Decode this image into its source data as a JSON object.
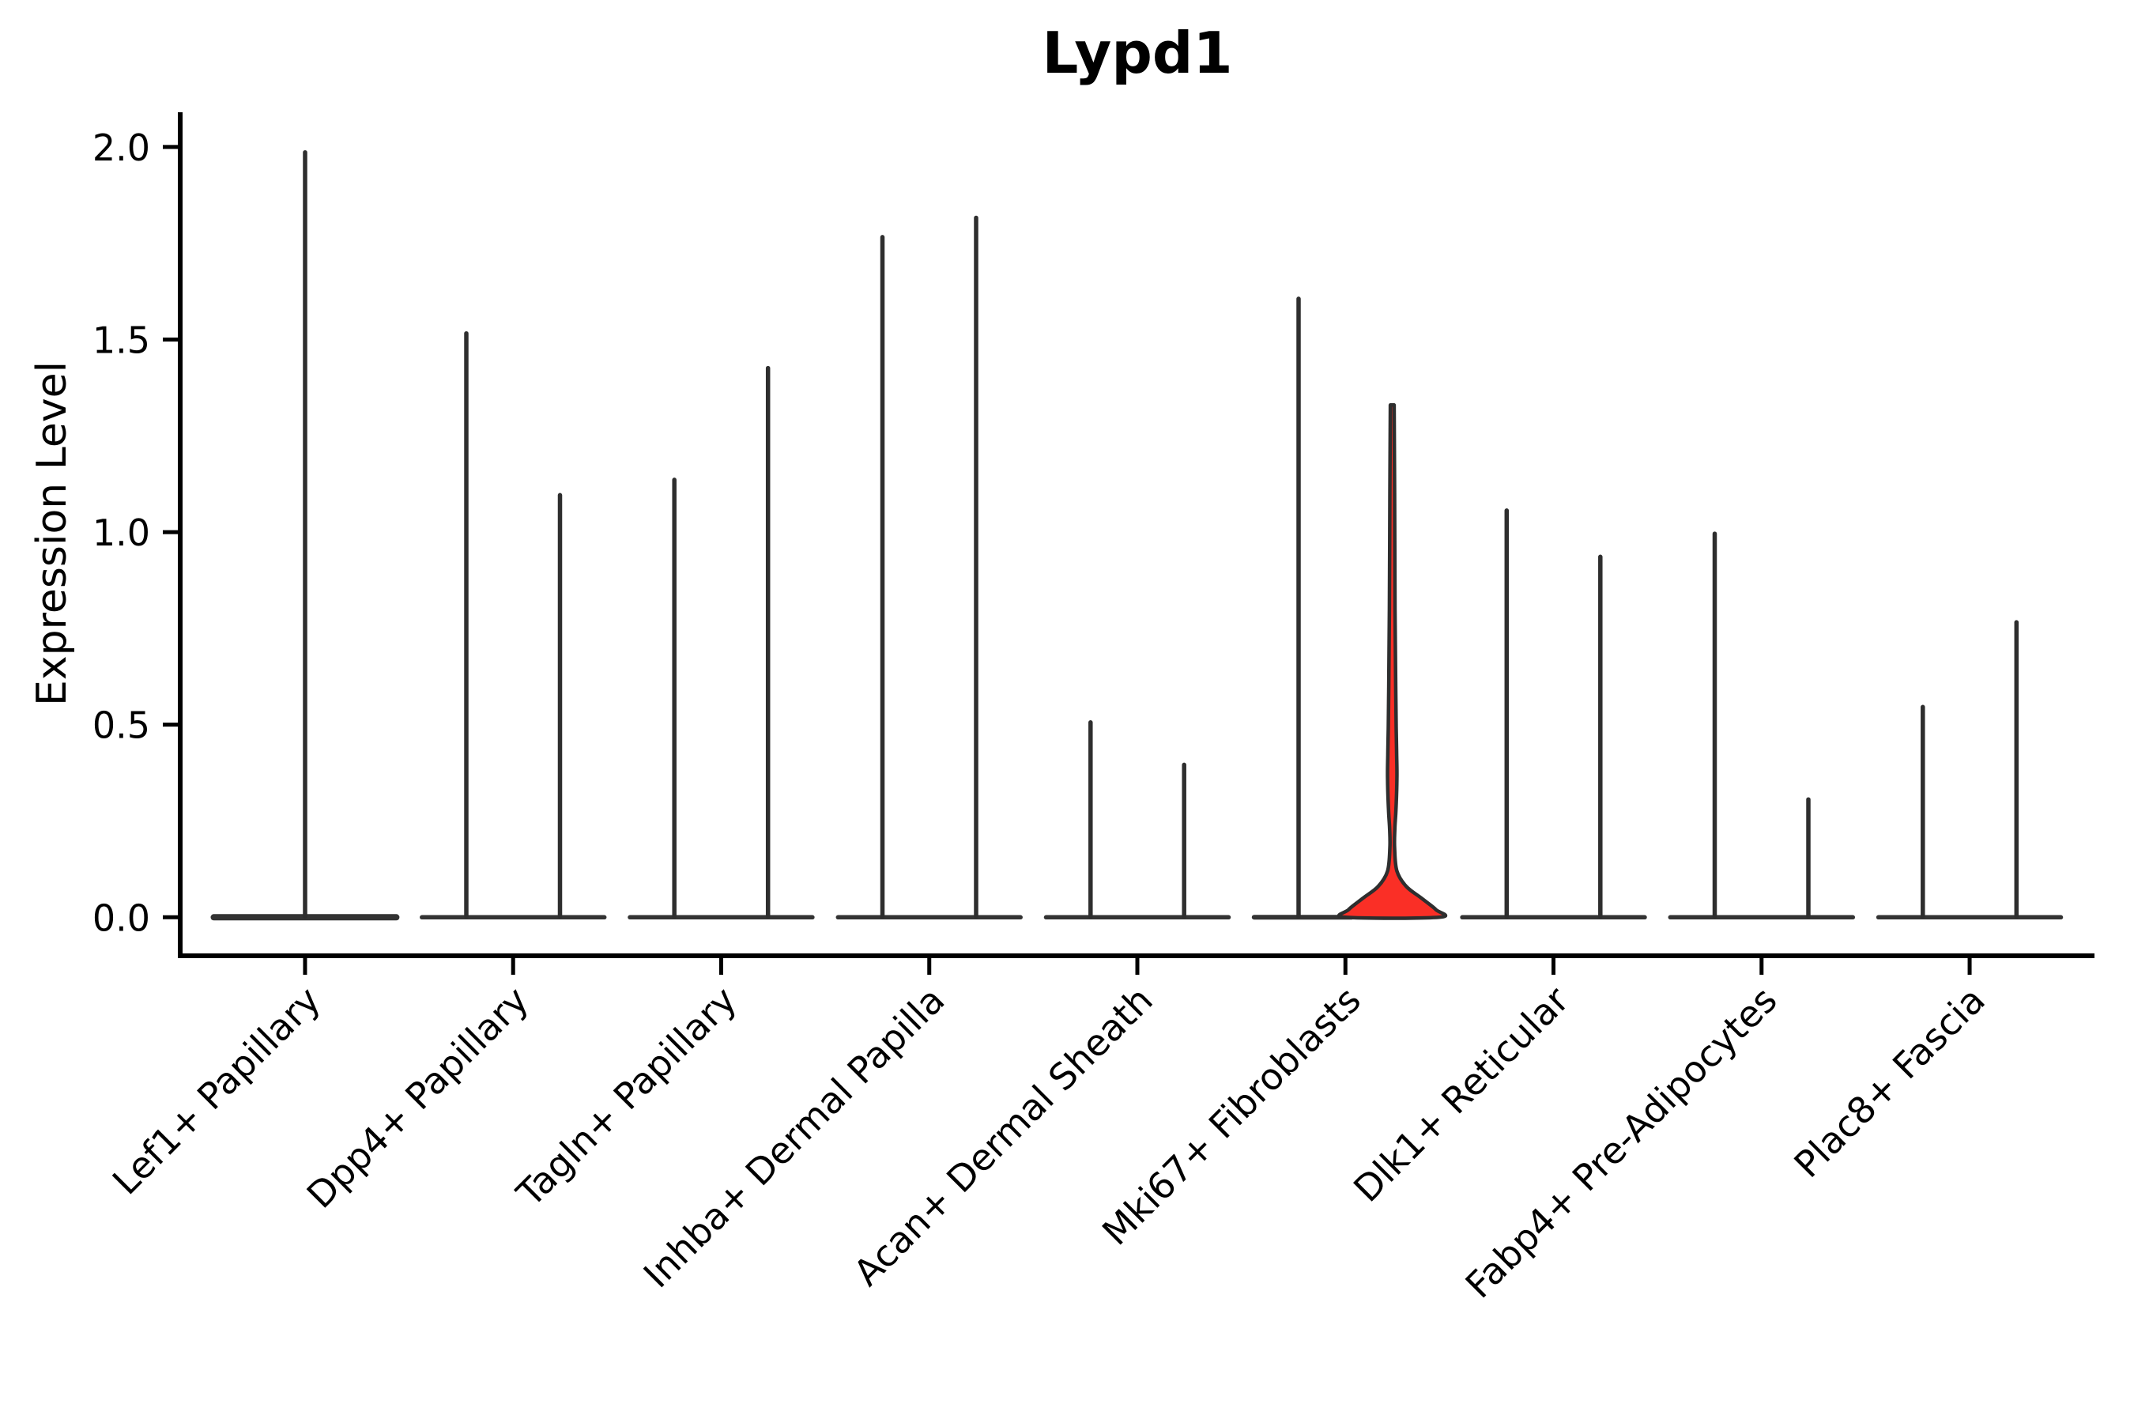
{
  "chart_data": {
    "type": "violin",
    "title": "Lypd1",
    "ylabel": "Expression Level",
    "xlabel": "",
    "grid": false,
    "legend": null,
    "ytick_values": [
      0.0,
      0.5,
      1.0,
      1.5,
      2.0
    ],
    "ytick_labels": [
      "0.0",
      "0.5",
      "1.0",
      "1.5",
      "2.0"
    ],
    "ylim": [
      -0.1,
      2.09
    ],
    "categories": [
      {
        "label": "Lef1+ Papillary",
        "base_thickness": 8.0,
        "violins": [
          {
            "group": "single",
            "offset": 0,
            "max": 1.99,
            "highlighted": false
          }
        ]
      },
      {
        "label": "Dpp4+ Papillary",
        "base_thickness": 5.5,
        "violins": [
          {
            "group": "left",
            "offset": -0.225,
            "max": 1.52,
            "highlighted": false
          },
          {
            "group": "right",
            "offset": 0.225,
            "max": 1.1,
            "highlighted": false
          }
        ]
      },
      {
        "label": "Tagln+ Papillary",
        "base_thickness": 5.5,
        "violins": [
          {
            "group": "left",
            "offset": -0.225,
            "max": 1.14,
            "highlighted": false
          },
          {
            "group": "right",
            "offset": 0.225,
            "max": 1.43,
            "highlighted": false
          }
        ]
      },
      {
        "label": "Inhba+ Dermal Papilla",
        "base_thickness": 5.5,
        "violins": [
          {
            "group": "left",
            "offset": -0.225,
            "max": 1.77,
            "highlighted": false
          },
          {
            "group": "right",
            "offset": 0.225,
            "max": 1.82,
            "highlighted": false
          }
        ]
      },
      {
        "label": "Acan+ Dermal Sheath",
        "base_thickness": 5.5,
        "violins": [
          {
            "group": "left",
            "offset": -0.225,
            "max": 0.51,
            "highlighted": false
          },
          {
            "group": "right",
            "offset": 0.225,
            "max": 0.4,
            "highlighted": false
          }
        ]
      },
      {
        "label": "Mki67+ Fibroblasts",
        "base_thickness": 6.0,
        "violins": [
          {
            "group": "left",
            "offset": -0.225,
            "max": 1.61,
            "highlighted": false
          },
          {
            "group": "right",
            "offset": 0.225,
            "max": 1.33,
            "highlighted": true
          }
        ]
      },
      {
        "label": "Dlk1+ Reticular",
        "base_thickness": 5.5,
        "violins": [
          {
            "group": "left",
            "offset": -0.225,
            "max": 1.06,
            "highlighted": false
          },
          {
            "group": "right",
            "offset": 0.225,
            "max": 0.94,
            "highlighted": false
          }
        ]
      },
      {
        "label": "Fabp4+ Pre-Adipocytes",
        "base_thickness": 5.5,
        "violins": [
          {
            "group": "left",
            "offset": -0.225,
            "max": 1.0,
            "highlighted": false
          },
          {
            "group": "right",
            "offset": 0.225,
            "max": 0.31,
            "highlighted": false
          }
        ]
      },
      {
        "label": "Plac8+ Fascia",
        "base_thickness": 5.5,
        "violins": [
          {
            "group": "left",
            "offset": -0.225,
            "max": 0.55,
            "highlighted": false
          },
          {
            "group": "right",
            "offset": 0.225,
            "max": 0.77,
            "highlighted": false
          }
        ]
      }
    ],
    "highlight_violin": {
      "category": "Mki67+ Fibroblasts",
      "group": "right",
      "max": 1.33,
      "fill": "#fa2f26",
      "profile": [
        [
          1.33,
          0.04
        ],
        [
          1.1,
          0.05
        ],
        [
          0.8,
          0.06
        ],
        [
          0.6,
          0.075
        ],
        [
          0.49,
          0.085
        ],
        [
          0.42,
          0.095
        ],
        [
          0.36,
          0.1
        ],
        [
          0.28,
          0.08
        ],
        [
          0.23,
          0.055
        ],
        [
          0.18,
          0.05
        ],
        [
          0.12,
          0.1
        ],
        [
          0.08,
          0.3
        ],
        [
          0.05,
          0.62
        ],
        [
          0.02,
          0.93
        ],
        [
          0.0,
          1.0
        ]
      ]
    },
    "colors": {
      "outline": "#2e2e2e",
      "base": "#333333",
      "axis": "#000000",
      "background": "#ffffff",
      "highlight_fill": "#fa2f26"
    }
  }
}
